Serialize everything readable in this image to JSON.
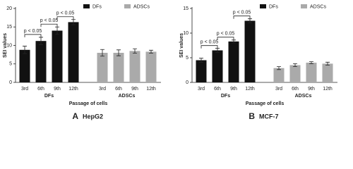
{
  "chart_data": [
    {
      "type": "bar",
      "panel": "A",
      "title": "HepG2",
      "ylabel": "SEI values",
      "xlabel": "Passage of cells",
      "categories": [
        "3rd",
        "6th",
        "9th",
        "12th"
      ],
      "series": [
        {
          "name": "DFs",
          "color": "#111111",
          "values": [
            8.8,
            11.2,
            14,
            16.3
          ],
          "errors": [
            1,
            1,
            1,
            0.7
          ]
        },
        {
          "name": "ADSCs",
          "color": "#aaaaaa",
          "values": [
            8,
            8,
            8.5,
            8.3
          ],
          "errors": [
            0.9,
            0.8,
            0.6,
            0.4
          ]
        }
      ],
      "ylim": [
        0,
        20
      ],
      "yticks": [
        0,
        5,
        10,
        15,
        20
      ],
      "annotations": [
        {
          "text": "p < 0.05",
          "between": [
            0,
            1
          ]
        },
        {
          "text": "p < 0.05",
          "between": [
            1,
            2
          ]
        },
        {
          "text": "p < 0.05",
          "between": [
            2,
            3
          ]
        }
      ]
    },
    {
      "type": "bar",
      "panel": "B",
      "title": "MCF-7",
      "ylabel": "SEI values",
      "xlabel": "Passage of cells",
      "categories": [
        "3rd",
        "6th",
        "9th",
        "12th"
      ],
      "series": [
        {
          "name": "DFs",
          "color": "#111111",
          "values": [
            4.5,
            6.5,
            8.3,
            12.5
          ],
          "errors": [
            0.4,
            0.4,
            0.3,
            0.4
          ]
        },
        {
          "name": "ADSCs",
          "color": "#aaaaaa",
          "values": [
            2.9,
            3.5,
            4,
            3.8
          ],
          "errors": [
            0.3,
            0.3,
            0.2,
            0.3
          ]
        }
      ],
      "ylim": [
        0,
        15
      ],
      "yticks": [
        0,
        5,
        10,
        15
      ],
      "annotations": [
        {
          "text": "p < 0.05",
          "between": [
            0,
            1
          ]
        },
        {
          "text": "p < 0.05",
          "between": [
            1,
            2
          ]
        },
        {
          "text": "p < 0.05",
          "between": [
            2,
            3
          ]
        }
      ]
    }
  ]
}
